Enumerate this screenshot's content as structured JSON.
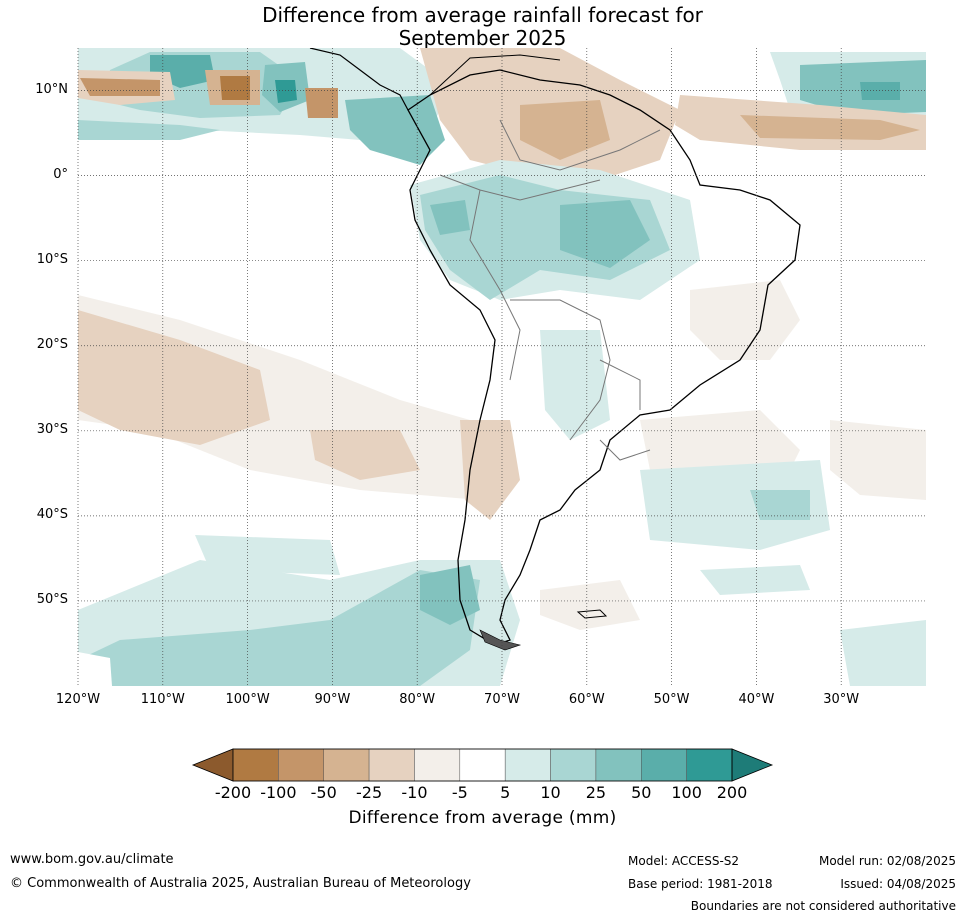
{
  "title_line1": "Difference from average rainfall forecast for",
  "title_line2": "September 2025",
  "lat_labels": [
    "10°N",
    "0°",
    "10°S",
    "20°S",
    "30°S",
    "40°S",
    "50°S"
  ],
  "lon_labels": [
    "120°W",
    "110°W",
    "100°W",
    "90°W",
    "80°W",
    "70°W",
    "60°W",
    "50°W",
    "40°W",
    "30°W"
  ],
  "colorbar": {
    "ticks": [
      "-200",
      "-100",
      "-50",
      "-25",
      "-10",
      "-5",
      "5",
      "10",
      "25",
      "50",
      "100",
      "200"
    ],
    "colors": [
      "#8c5a2d",
      "#b07a42",
      "#c49569",
      "#d5b391",
      "#e6d2c0",
      "#f3efea",
      "#ffffff",
      "#d6ebe9",
      "#a9d6d3",
      "#82c2be",
      "#5aaeaa",
      "#2f9a95",
      "#1e7c78"
    ],
    "label": "Difference from average (mm)"
  },
  "footer": {
    "website": "www.bom.gov.au/climate",
    "copyright": "© Commonwealth of Australia 2025, Australian Bureau of Meteorology",
    "model": "Model: ACCESS-S2",
    "base_period": "Base period: 1981-2018",
    "model_run": "Model run: 02/08/2025",
    "issued": "Issued: 04/08/2025",
    "disclaimer": "Boundaries are not considered authoritative"
  }
}
